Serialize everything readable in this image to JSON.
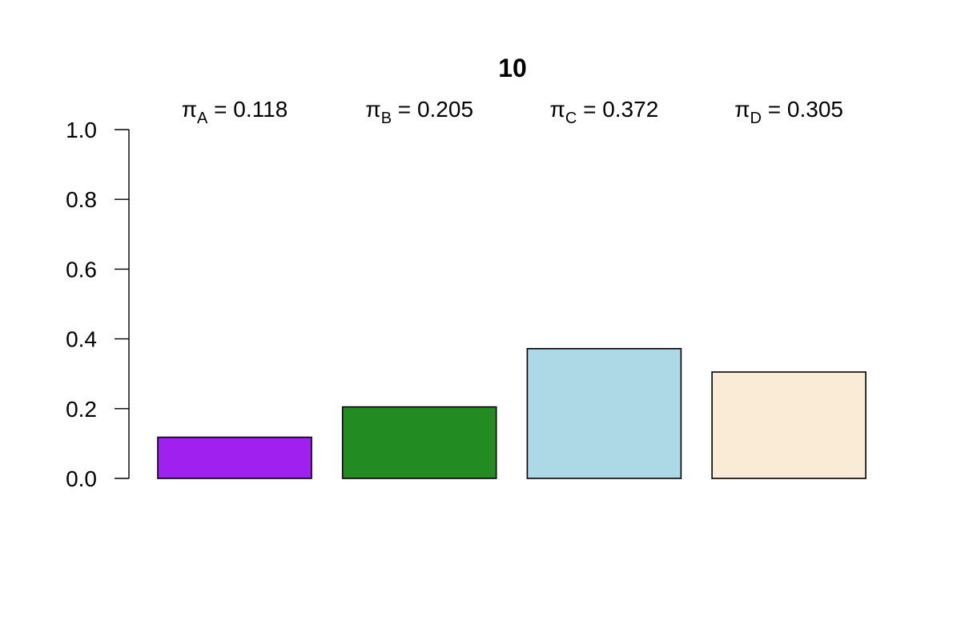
{
  "chart_data": {
    "type": "bar",
    "title": "10",
    "xlabel": "",
    "ylabel": "",
    "ylim": [
      0,
      1.0
    ],
    "yticks": [
      "0.0",
      "0.2",
      "0.4",
      "0.6",
      "0.8",
      "1.0"
    ],
    "ytick_values": [
      0.0,
      0.2,
      0.4,
      0.6,
      0.8,
      1.0
    ],
    "categories": [
      "A",
      "B",
      "C",
      "D"
    ],
    "values": [
      0.118,
      0.205,
      0.372,
      0.305
    ],
    "value_labels": [
      "0.118",
      "0.205",
      "0.372",
      "0.305"
    ],
    "label_symbol": "π",
    "colors": [
      "#A020F0",
      "#228B22",
      "#ADD8E6",
      "#FAEBD7"
    ],
    "grid": false
  }
}
